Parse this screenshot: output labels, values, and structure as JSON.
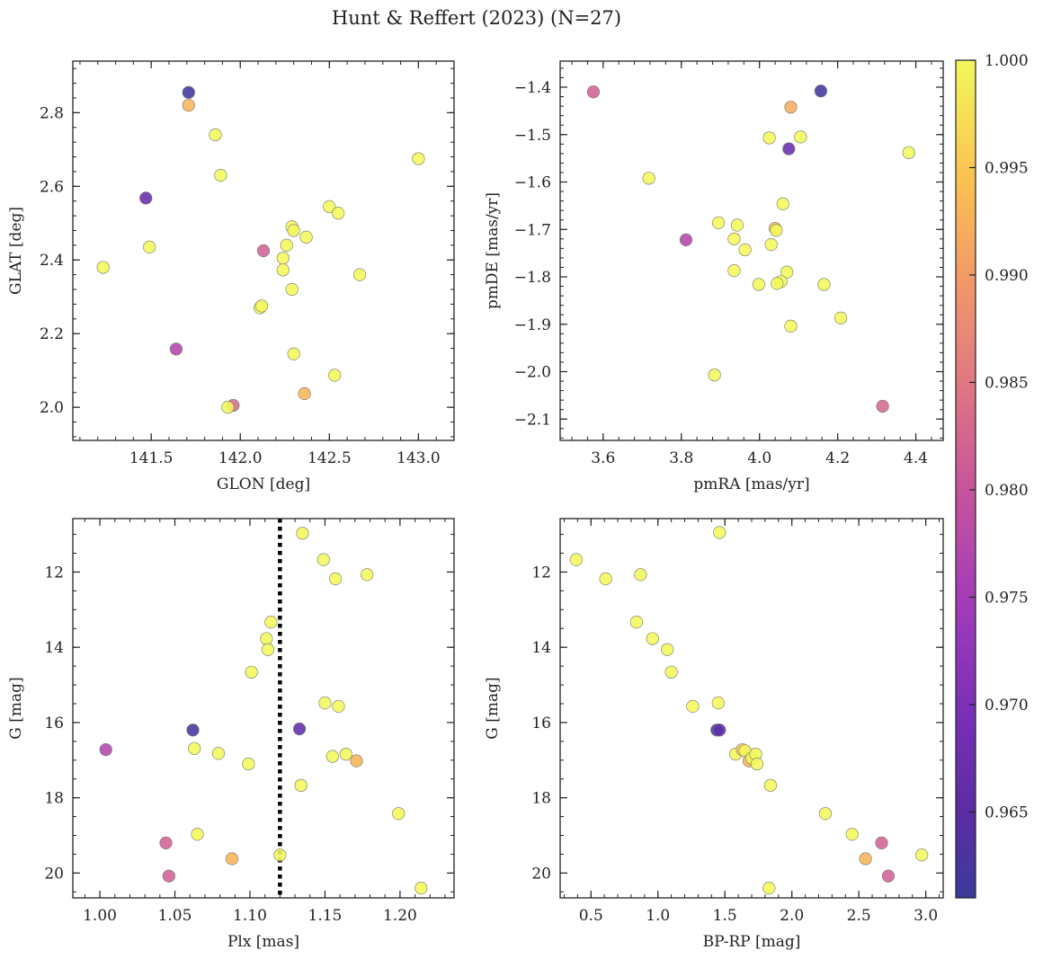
{
  "figure": {
    "title": "Hunt & Reffert (2023) (N=27)"
  },
  "colorbar": {
    "colormap": "plasma",
    "range": [
      0.961,
      1.0
    ],
    "ticks": [
      "1.000",
      "0.995",
      "0.990",
      "0.985",
      "0.980",
      "0.975",
      "0.970",
      "0.965"
    ],
    "tick_values": [
      1.0,
      0.995,
      0.99,
      0.985,
      0.98,
      0.975,
      0.97,
      0.965
    ]
  },
  "chart_data": [
    {
      "type": "scatter",
      "xlabel": "GLON [deg]",
      "ylabel": "GLAT [deg]",
      "xlim": [
        141.06,
        143.2
      ],
      "ylim": [
        1.91,
        2.94
      ],
      "xticks": [
        141.5,
        142.0,
        142.5,
        143.0
      ],
      "xtick_labels": [
        "141.5",
        "142.0",
        "142.5",
        "143.0"
      ],
      "yticks": [
        2.0,
        2.2,
        2.4,
        2.6,
        2.8
      ],
      "ytick_labels": [
        "2.0",
        "2.2",
        "2.4",
        "2.6",
        "2.8"
      ],
      "points": [
        {
          "x": 141.71,
          "y": 2.855,
          "c": 0.962
        },
        {
          "x": 141.71,
          "y": 2.82,
          "c": 0.993
        },
        {
          "x": 141.86,
          "y": 2.74,
          "c": 1.0
        },
        {
          "x": 141.89,
          "y": 2.63,
          "c": 1.0
        },
        {
          "x": 143.0,
          "y": 2.675,
          "c": 1.0
        },
        {
          "x": 141.47,
          "y": 2.568,
          "c": 0.967
        },
        {
          "x": 142.5,
          "y": 2.545,
          "c": 1.0
        },
        {
          "x": 142.55,
          "y": 2.527,
          "c": 1.0
        },
        {
          "x": 142.29,
          "y": 2.49,
          "c": 1.0
        },
        {
          "x": 142.3,
          "y": 2.48,
          "c": 1.0
        },
        {
          "x": 142.37,
          "y": 2.462,
          "c": 1.0
        },
        {
          "x": 142.26,
          "y": 2.44,
          "c": 1.0
        },
        {
          "x": 141.49,
          "y": 2.435,
          "c": 1.0
        },
        {
          "x": 142.13,
          "y": 2.425,
          "c": 0.982
        },
        {
          "x": 142.24,
          "y": 2.405,
          "c": 1.0
        },
        {
          "x": 142.24,
          "y": 2.373,
          "c": 1.0
        },
        {
          "x": 141.23,
          "y": 2.38,
          "c": 1.0
        },
        {
          "x": 142.67,
          "y": 2.36,
          "c": 1.0
        },
        {
          "x": 142.29,
          "y": 2.32,
          "c": 1.0
        },
        {
          "x": 142.11,
          "y": 2.27,
          "c": 1.0
        },
        {
          "x": 142.12,
          "y": 2.275,
          "c": 1.0
        },
        {
          "x": 141.64,
          "y": 2.158,
          "c": 0.977
        },
        {
          "x": 142.3,
          "y": 2.145,
          "c": 1.0
        },
        {
          "x": 142.53,
          "y": 2.087,
          "c": 1.0
        },
        {
          "x": 142.36,
          "y": 2.037,
          "c": 0.993
        },
        {
          "x": 141.96,
          "y": 2.005,
          "c": 0.983
        },
        {
          "x": 141.93,
          "y": 2.0,
          "c": 1.0
        }
      ]
    },
    {
      "type": "scatter",
      "xlabel": "pmRA [mas/yr]",
      "ylabel": "pmDE [mas/yr]",
      "xlim": [
        3.49,
        4.47
      ],
      "ylim": [
        -2.145,
        -1.345
      ],
      "xticks": [
        3.6,
        3.8,
        4.0,
        4.2,
        4.4
      ],
      "xtick_labels": [
        "3.6",
        "3.8",
        "4.0",
        "4.2",
        "4.4"
      ],
      "yticks": [
        -1.4,
        -1.5,
        -1.6,
        -1.7,
        -1.8,
        -1.9,
        -2.0,
        -2.1
      ],
      "ytick_labels": [
        "−1.4",
        "−1.5",
        "−1.6",
        "−1.7",
        "−1.8",
        "−1.9",
        "−2.0",
        "−2.1"
      ],
      "points": [
        {
          "x": 3.575,
          "y": -1.41,
          "c": 0.982
        },
        {
          "x": 4.157,
          "y": -1.408,
          "c": 0.962
        },
        {
          "x": 4.08,
          "y": -1.442,
          "c": 0.992
        },
        {
          "x": 4.025,
          "y": -1.507,
          "c": 1.0
        },
        {
          "x": 4.105,
          "y": -1.505,
          "c": 1.0
        },
        {
          "x": 4.075,
          "y": -1.53,
          "c": 0.967
        },
        {
          "x": 4.382,
          "y": -1.538,
          "c": 1.0
        },
        {
          "x": 3.717,
          "y": -1.592,
          "c": 1.0
        },
        {
          "x": 4.06,
          "y": -1.646,
          "c": 1.0
        },
        {
          "x": 3.895,
          "y": -1.686,
          "c": 1.0
        },
        {
          "x": 3.943,
          "y": -1.691,
          "c": 1.0
        },
        {
          "x": 4.04,
          "y": -1.698,
          "c": 0.995
        },
        {
          "x": 4.043,
          "y": -1.702,
          "c": 1.0
        },
        {
          "x": 3.812,
          "y": -1.722,
          "c": 0.977
        },
        {
          "x": 3.935,
          "y": -1.72,
          "c": 1.0
        },
        {
          "x": 4.03,
          "y": -1.732,
          "c": 1.0
        },
        {
          "x": 3.963,
          "y": -1.743,
          "c": 1.0
        },
        {
          "x": 3.935,
          "y": -1.787,
          "c": 1.0
        },
        {
          "x": 4.07,
          "y": -1.79,
          "c": 1.0
        },
        {
          "x": 4.055,
          "y": -1.81,
          "c": 1.0
        },
        {
          "x": 4.045,
          "y": -1.814,
          "c": 1.0
        },
        {
          "x": 3.998,
          "y": -1.816,
          "c": 1.0
        },
        {
          "x": 4.165,
          "y": -1.816,
          "c": 1.0
        },
        {
          "x": 4.208,
          "y": -1.887,
          "c": 1.0
        },
        {
          "x": 4.08,
          "y": -1.904,
          "c": 1.0
        },
        {
          "x": 3.885,
          "y": -2.007,
          "c": 1.0
        },
        {
          "x": 4.315,
          "y": -2.073,
          "c": 0.983
        }
      ]
    },
    {
      "type": "scatter",
      "xlabel": "Plx [mas]",
      "ylabel": "G [mag]",
      "xlim": [
        0.982,
        1.236
      ],
      "ylim": [
        20.66,
        10.58
      ],
      "y_inverted": true,
      "xticks": [
        1.0,
        1.05,
        1.1,
        1.15,
        1.2
      ],
      "xtick_labels": [
        "1.00",
        "1.05",
        "1.10",
        "1.15",
        "1.20"
      ],
      "yticks": [
        12,
        14,
        16,
        18,
        20
      ],
      "ytick_labels": [
        "12",
        "14",
        "16",
        "18",
        "20"
      ],
      "vline": {
        "x": 1.12,
        "style": "dotted"
      },
      "points": [
        {
          "x": 1.135,
          "y": 10.97,
          "c": 1.0
        },
        {
          "x": 1.149,
          "y": 11.67,
          "c": 1.0
        },
        {
          "x": 1.157,
          "y": 12.18,
          "c": 1.0
        },
        {
          "x": 1.178,
          "y": 12.07,
          "c": 1.0
        },
        {
          "x": 1.114,
          "y": 13.33,
          "c": 1.0
        },
        {
          "x": 1.111,
          "y": 13.77,
          "c": 1.0
        },
        {
          "x": 1.112,
          "y": 14.06,
          "c": 1.0
        },
        {
          "x": 1.101,
          "y": 14.66,
          "c": 1.0
        },
        {
          "x": 1.15,
          "y": 15.48,
          "c": 1.0
        },
        {
          "x": 1.159,
          "y": 15.57,
          "c": 1.0
        },
        {
          "x": 1.062,
          "y": 16.2,
          "c": 0.962
        },
        {
          "x": 1.133,
          "y": 16.17,
          "c": 0.966
        },
        {
          "x": 1.004,
          "y": 16.72,
          "c": 0.977
        },
        {
          "x": 1.063,
          "y": 16.69,
          "c": 1.0
        },
        {
          "x": 1.079,
          "y": 16.82,
          "c": 1.0
        },
        {
          "x": 1.164,
          "y": 16.84,
          "c": 1.0
        },
        {
          "x": 1.155,
          "y": 16.9,
          "c": 1.0
        },
        {
          "x": 1.171,
          "y": 17.02,
          "c": 0.993
        },
        {
          "x": 1.099,
          "y": 17.1,
          "c": 1.0
        },
        {
          "x": 1.134,
          "y": 17.67,
          "c": 1.0
        },
        {
          "x": 1.199,
          "y": 18.42,
          "c": 1.0
        },
        {
          "x": 1.065,
          "y": 18.97,
          "c": 1.0
        },
        {
          "x": 1.044,
          "y": 19.2,
          "c": 0.982
        },
        {
          "x": 1.12,
          "y": 19.52,
          "c": 1.0
        },
        {
          "x": 1.088,
          "y": 19.62,
          "c": 0.993
        },
        {
          "x": 1.046,
          "y": 20.08,
          "c": 0.982
        },
        {
          "x": 1.214,
          "y": 20.4,
          "c": 1.0
        }
      ]
    },
    {
      "type": "scatter",
      "xlabel": "BP-RP [mag]",
      "ylabel": "G [mag]",
      "xlim": [
        0.27,
        3.13
      ],
      "ylim": [
        20.66,
        10.58
      ],
      "y_inverted": true,
      "xticks": [
        0.5,
        1.0,
        1.5,
        2.0,
        2.5,
        3.0
      ],
      "xtick_labels": [
        "0.5",
        "1.0",
        "1.5",
        "2.0",
        "2.5",
        "3.0"
      ],
      "yticks": [
        12,
        14,
        16,
        18,
        20
      ],
      "ytick_labels": [
        "12",
        "14",
        "16",
        "18",
        "20"
      ],
      "points": [
        {
          "x": 1.46,
          "y": 10.95,
          "c": 1.0
        },
        {
          "x": 0.39,
          "y": 11.67,
          "c": 1.0
        },
        {
          "x": 0.61,
          "y": 12.18,
          "c": 1.0
        },
        {
          "x": 0.87,
          "y": 12.07,
          "c": 1.0
        },
        {
          "x": 0.84,
          "y": 13.33,
          "c": 1.0
        },
        {
          "x": 0.96,
          "y": 13.77,
          "c": 1.0
        },
        {
          "x": 1.07,
          "y": 14.06,
          "c": 1.0
        },
        {
          "x": 1.1,
          "y": 14.66,
          "c": 1.0
        },
        {
          "x": 1.26,
          "y": 15.57,
          "c": 1.0
        },
        {
          "x": 1.45,
          "y": 15.48,
          "c": 1.0
        },
        {
          "x": 1.44,
          "y": 16.2,
          "c": 0.962
        },
        {
          "x": 1.46,
          "y": 16.2,
          "c": 0.966
        },
        {
          "x": 1.58,
          "y": 16.84,
          "c": 1.0
        },
        {
          "x": 1.63,
          "y": 16.72,
          "c": 0.995
        },
        {
          "x": 1.65,
          "y": 16.75,
          "c": 1.0
        },
        {
          "x": 1.68,
          "y": 17.02,
          "c": 0.993
        },
        {
          "x": 1.7,
          "y": 16.95,
          "c": 1.0
        },
        {
          "x": 1.73,
          "y": 16.84,
          "c": 1.0
        },
        {
          "x": 1.74,
          "y": 17.1,
          "c": 1.0
        },
        {
          "x": 1.84,
          "y": 17.67,
          "c": 1.0
        },
        {
          "x": 2.25,
          "y": 18.42,
          "c": 1.0
        },
        {
          "x": 2.45,
          "y": 18.97,
          "c": 1.0
        },
        {
          "x": 2.67,
          "y": 19.2,
          "c": 0.982
        },
        {
          "x": 2.55,
          "y": 19.62,
          "c": 0.993
        },
        {
          "x": 2.97,
          "y": 19.52,
          "c": 1.0
        },
        {
          "x": 2.72,
          "y": 20.08,
          "c": 0.982
        },
        {
          "x": 1.83,
          "y": 20.4,
          "c": 1.0
        }
      ]
    }
  ]
}
